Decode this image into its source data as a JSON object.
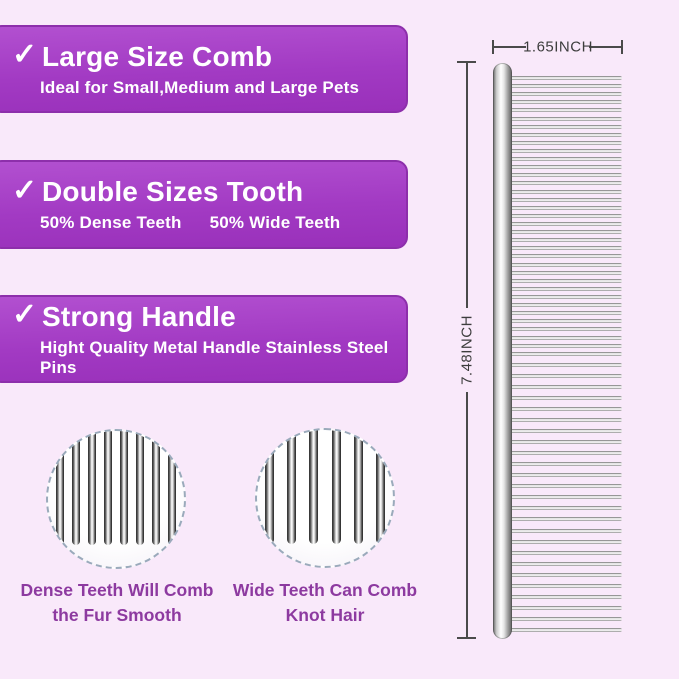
{
  "banners": [
    {
      "check": "✓",
      "title": "Large Size Comb",
      "subtitle": "Ideal for Small,Medium and Large Pets"
    },
    {
      "check": "✓",
      "title": "Double Sizes Tooth",
      "subtitle_parts": [
        "50% Dense Teeth",
        "50% Wide Teeth"
      ]
    },
    {
      "check": "✓",
      "title": "Strong Handle",
      "subtitle": "Hight Quality Metal Handle Stainless Steel Pins"
    }
  ],
  "comb": {
    "width_label": "1.65INCH",
    "height_label": "7.48INCH",
    "dense_teeth_count": 34,
    "wide_teeth_count": 26
  },
  "zoom_circles": [
    {
      "caption_line1": "Dense Teeth Will Comb",
      "caption_line2": "the Fur Smooth",
      "pin_count": 8
    },
    {
      "caption_line1": "Wide Teeth Can Comb",
      "caption_line2": "Knot Hair",
      "pin_count": 6
    }
  ],
  "colors": {
    "background": "#f9e9fa",
    "banner_purple": "#a23ac3",
    "banner_border": "#8d2fab",
    "banner_text": "#ffffff",
    "caption_text": "#8d3aa0",
    "dimension_lines": "#4a4a4a"
  }
}
